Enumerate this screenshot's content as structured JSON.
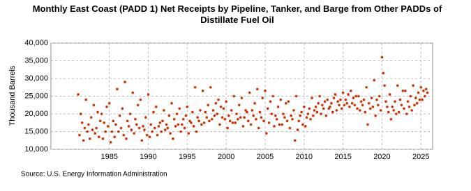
{
  "chart_data": {
    "type": "scatter",
    "title": "Monthly East Coast (PADD 1) Net Receipts by Pipeline, Tanker, and Barge from Other PADDs of Distillate Fuel Oil",
    "y_label": "Thousand Barrels",
    "source": "Source: U.S. Energy Information Administration",
    "color": "#cc3300",
    "grid": true,
    "xlim": [
      1977.5,
      2026.5
    ],
    "ylim": [
      10000,
      40000
    ],
    "xticks": [
      1985,
      1990,
      1995,
      2000,
      2005,
      2010,
      2015,
      2020,
      2025
    ],
    "yticks": [
      {
        "value": 10000,
        "label": "10,000"
      },
      {
        "value": 15000,
        "label": "15,000"
      },
      {
        "value": 20000,
        "label": "20,000"
      },
      {
        "value": 25000,
        "label": "25,000"
      },
      {
        "value": 30000,
        "label": "30,000"
      },
      {
        "value": 35000,
        "label": "35,000"
      },
      {
        "value": 40000,
        "label": "40,000"
      }
    ],
    "x": [
      1981,
      1981.17,
      1981.33,
      1981.5,
      1981.67,
      1981.83,
      1982,
      1982.17,
      1982.33,
      1982.5,
      1982.67,
      1982.83,
      1983,
      1983.17,
      1983.33,
      1983.5,
      1983.67,
      1983.83,
      1984,
      1984.17,
      1984.33,
      1984.5,
      1984.67,
      1984.83,
      1985,
      1985.17,
      1985.33,
      1985.5,
      1985.67,
      1985.83,
      1986,
      1986.17,
      1986.33,
      1986.5,
      1986.67,
      1986.83,
      1987,
      1987.17,
      1987.33,
      1987.5,
      1987.67,
      1987.83,
      1988,
      1988.17,
      1988.33,
      1988.5,
      1988.67,
      1988.83,
      1989,
      1989.17,
      1989.33,
      1989.5,
      1989.67,
      1989.83,
      1990,
      1990.17,
      1990.33,
      1990.5,
      1990.67,
      1990.83,
      1991,
      1991.17,
      1991.33,
      1991.5,
      1991.67,
      1991.83,
      1992,
      1992.17,
      1992.33,
      1992.5,
      1992.67,
      1992.83,
      1993,
      1993.17,
      1993.33,
      1993.5,
      1993.67,
      1993.83,
      1994,
      1994.17,
      1994.33,
      1994.5,
      1994.67,
      1994.83,
      1995,
      1995.17,
      1995.33,
      1995.5,
      1995.67,
      1995.83,
      1996,
      1996.17,
      1996.33,
      1996.5,
      1996.67,
      1996.83,
      1997,
      1997.17,
      1997.33,
      1997.5,
      1997.67,
      1997.83,
      1998,
      1998.17,
      1998.33,
      1998.5,
      1998.67,
      1998.83,
      1999,
      1999.17,
      1999.33,
      1999.5,
      1999.67,
      1999.83,
      2000,
      2000.17,
      2000.33,
      2000.5,
      2000.67,
      2000.83,
      2001,
      2001.17,
      2001.33,
      2001.5,
      2001.67,
      2001.83,
      2002,
      2002.17,
      2002.33,
      2002.5,
      2002.67,
      2002.83,
      2003,
      2003.17,
      2003.33,
      2003.5,
      2003.67,
      2003.83,
      2004,
      2004.17,
      2004.33,
      2004.5,
      2004.67,
      2004.83,
      2005,
      2005.17,
      2005.33,
      2005.5,
      2005.67,
      2005.83,
      2006,
      2006.17,
      2006.33,
      2006.5,
      2006.67,
      2006.83,
      2007,
      2007.17,
      2007.33,
      2007.5,
      2007.67,
      2007.83,
      2008,
      2008.17,
      2008.33,
      2008.5,
      2008.67,
      2008.83,
      2009,
      2009.17,
      2009.33,
      2009.5,
      2009.67,
      2009.83,
      2010,
      2010.17,
      2010.33,
      2010.5,
      2010.67,
      2010.83,
      2011,
      2011.17,
      2011.33,
      2011.5,
      2011.67,
      2011.83,
      2012,
      2012.17,
      2012.33,
      2012.5,
      2012.67,
      2012.83,
      2013,
      2013.17,
      2013.33,
      2013.5,
      2013.67,
      2013.83,
      2014,
      2014.17,
      2014.33,
      2014.5,
      2014.67,
      2014.83,
      2015,
      2015.17,
      2015.33,
      2015.5,
      2015.67,
      2015.83,
      2016,
      2016.17,
      2016.33,
      2016.5,
      2016.67,
      2016.83,
      2017,
      2017.17,
      2017.33,
      2017.5,
      2017.67,
      2017.83,
      2018,
      2018.17,
      2018.33,
      2018.5,
      2018.67,
      2018.83,
      2019,
      2019.17,
      2019.33,
      2019.5,
      2019.67,
      2019.83,
      2020,
      2020.17,
      2020.33,
      2020.5,
      2020.67,
      2020.83,
      2021,
      2021.17,
      2021.33,
      2021.5,
      2021.67,
      2021.83,
      2022,
      2022.17,
      2022.33,
      2022.5,
      2022.67,
      2022.83,
      2023,
      2023.17,
      2023.33,
      2023.5,
      2023.67,
      2023.83,
      2024,
      2024.17,
      2024.33,
      2024.5,
      2024.67,
      2024.83,
      2025,
      2025.17,
      2025.33,
      2025.5,
      2025.67,
      2025.83
    ],
    "values": [
      25500,
      14000,
      20000,
      17500,
      12500,
      16000,
      24000,
      15000,
      17000,
      13000,
      19000,
      15500,
      22500,
      14500,
      16000,
      20500,
      13500,
      18000,
      20000,
      13000,
      17500,
      15000,
      22000,
      16500,
      23000,
      12000,
      15000,
      18000,
      13500,
      17000,
      27000,
      15000,
      19500,
      16000,
      21500,
      14000,
      29000,
      13000,
      18000,
      16500,
      20000,
      15500,
      26000,
      14500,
      18500,
      17000,
      22500,
      16000,
      24000,
      12500,
      16500,
      15500,
      19000,
      14000,
      25500,
      13500,
      17000,
      15000,
      20500,
      16000,
      22000,
      14000,
      16500,
      17500,
      15000,
      18000,
      21000,
      15500,
      17000,
      16000,
      19500,
      14500,
      23000,
      13000,
      18500,
      16500,
      20000,
      17000,
      21500,
      15000,
      17000,
      18500,
      16000,
      19500,
      22000,
      14500,
      18000,
      17500,
      20500,
      16500,
      27500,
      15000,
      19000,
      18000,
      21000,
      17000,
      26500,
      17500,
      20500,
      19000,
      22500,
      18000,
      27500,
      18500,
      21000,
      19500,
      23000,
      20000,
      24000,
      17000,
      22000,
      19000,
      21500,
      18500,
      23500,
      16000,
      19500,
      18000,
      21000,
      17500,
      25000,
      17500,
      20000,
      18500,
      22500,
      19000,
      24500,
      16500,
      19000,
      21000,
      20500,
      18000,
      26000,
      17000,
      21000,
      19500,
      23000,
      18500,
      27000,
      16000,
      20500,
      19000,
      24500,
      18000,
      26500,
      14500,
      21500,
      17500,
      23500,
      20000,
      25000,
      16500,
      19500,
      18500,
      22000,
      17000,
      24000,
      17000,
      20000,
      19000,
      23000,
      18000,
      23500,
      16000,
      19500,
      18500,
      21000,
      12500,
      25000,
      15500,
      18000,
      19500,
      20500,
      17000,
      22000,
      16500,
      19000,
      20000,
      21500,
      18500,
      24500,
      19500,
      21000,
      22000,
      20500,
      23000,
      25000,
      20000,
      22500,
      21500,
      23500,
      19500,
      24000,
      21500,
      22000,
      23000,
      20500,
      24500,
      25500,
      21000,
      23500,
      22500,
      24000,
      21500,
      26000,
      22500,
      24000,
      23000,
      25500,
      22000,
      26500,
      23000,
      24500,
      22500,
      25000,
      21500,
      25000,
      21000,
      23500,
      22500,
      24000,
      20500,
      27500,
      17000,
      23000,
      21500,
      24500,
      22000,
      29500,
      19500,
      24000,
      22500,
      25000,
      21000,
      36000,
      31500,
      28000,
      23500,
      22000,
      20500,
      25500,
      18500,
      22000,
      21000,
      23500,
      20000,
      28000,
      20500,
      24000,
      22500,
      26500,
      21500,
      26500,
      20000,
      23500,
      22000,
      25000,
      21000,
      28000,
      22500,
      24500,
      23000,
      26000,
      24000,
      27500,
      24000,
      26500,
      25000,
      27000,
      26000
    ]
  }
}
